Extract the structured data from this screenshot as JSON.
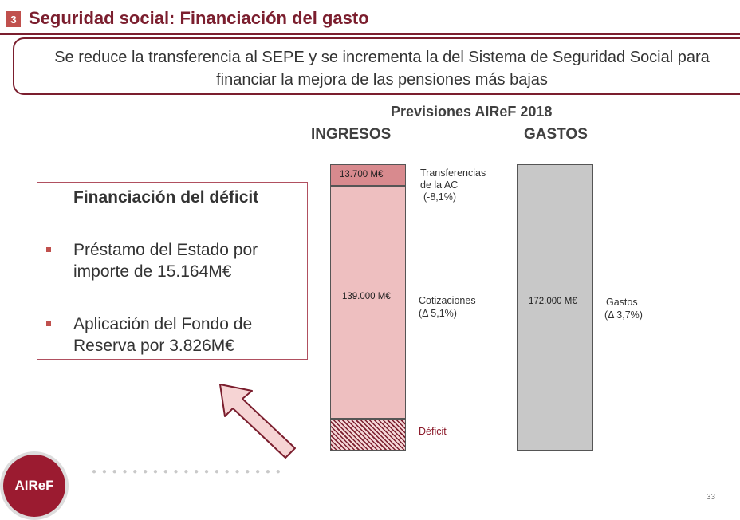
{
  "header": {
    "section_number": "3",
    "title": "Seguridad social: Financiación del gasto",
    "subtitle": "Se reduce la transferencia al SEPE y se incrementa la del Sistema de Seguridad Social para financiar la mejora de las pensiones más bajas"
  },
  "chart": {
    "heading": "Previsiones AIReF 2018",
    "col_ingresos": "INGRESOS",
    "col_gastos": "GASTOS",
    "ingresos": {
      "transfer_value": "13.700 M€",
      "transfer_label_1": "Transferencias",
      "transfer_label_2": "de la AC",
      "transfer_label_3": "(-8,1%)",
      "cotiz_value": "139.000 M€",
      "cotiz_label_1": "Cotizaciones",
      "cotiz_label_2": "(Δ 5,1%)",
      "deficit_label": "Déficit"
    },
    "gastos": {
      "value": "172.000 M€",
      "label_1": "Gastos",
      "label_2": "(Δ 3,7%)"
    }
  },
  "deficit_box": {
    "title": "Financiación del déficit",
    "bullets": [
      "Préstamo del Estado por importe de 15.164M€",
      "Aplicación del Fondo de Reserva por 3.826M€"
    ]
  },
  "footer": {
    "logo_text": "AIReF",
    "page_number": "33"
  },
  "colors": {
    "brand": "#7b1e2e",
    "accent": "#c0504d",
    "transfer": "#d88a8e",
    "cotizaciones": "#eebfc0",
    "gastos": "#c8c8c8"
  }
}
